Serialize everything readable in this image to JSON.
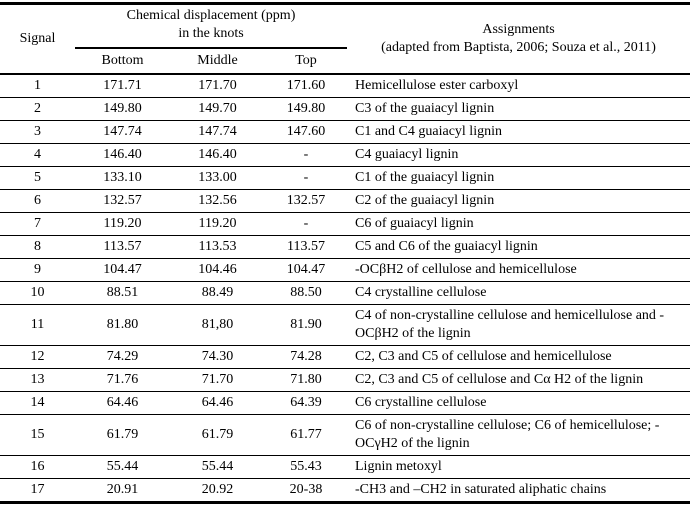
{
  "colors": {
    "text": "#000000",
    "background": "#ffffff",
    "rule": "#000000"
  },
  "header": {
    "signal": "Signal",
    "group_line1": "Chemical displacement (ppm)",
    "group_line2": "in the knots",
    "col_bottom": "Bottom",
    "col_middle": "Middle",
    "col_top": "Top",
    "assignments_line1": "Assignments",
    "assignments_line2": "(adapted from Baptista, 2006; Souza et al., 2011)"
  },
  "rows": [
    {
      "signal": "1",
      "bottom": "171.71",
      "middle": "171.70",
      "top": "171.60",
      "assignment": "Hemicellulose ester carboxyl"
    },
    {
      "signal": "2",
      "bottom": "149.80",
      "middle": "149.70",
      "top": "149.80",
      "assignment": "C3 of the guaiacyl lignin"
    },
    {
      "signal": "3",
      "bottom": "147.74",
      "middle": "147.74",
      "top": "147.60",
      "assignment": "C1 and C4 guaiacyl lignin"
    },
    {
      "signal": "4",
      "bottom": "146.40",
      "middle": "146.40",
      "top": "-",
      "assignment": "C4 guaiacyl lignin"
    },
    {
      "signal": "5",
      "bottom": "133.10",
      "middle": "133.00",
      "top": "-",
      "assignment": "C1 of the guaiacyl lignin"
    },
    {
      "signal": "6",
      "bottom": "132.57",
      "middle": "132.56",
      "top": "132.57",
      "assignment": "C2 of the guaiacyl lignin"
    },
    {
      "signal": "7",
      "bottom": "119.20",
      "middle": "119.20",
      "top": "-",
      "assignment": "C6 of guaiacyl lignin"
    },
    {
      "signal": "8",
      "bottom": "113.57",
      "middle": "113.53",
      "top": "113.57",
      "assignment": "C5 and C6 of the guaiacyl lignin"
    },
    {
      "signal": "9",
      "bottom": "104.47",
      "middle": "104.46",
      "top": "104.47",
      "assignment": "-OCβH2 of cellulose and hemicellulose"
    },
    {
      "signal": "10",
      "bottom": "88.51",
      "middle": "88.49",
      "top": "88.50",
      "assignment": "C4 crystalline cellulose"
    },
    {
      "signal": "11",
      "bottom": "81.80",
      "middle": "81,80",
      "top": "81.90",
      "assignment": "C4 of non-crystalline cellulose and hemicellulose and -OCβH2 of the lignin"
    },
    {
      "signal": "12",
      "bottom": "74.29",
      "middle": "74.30",
      "top": "74.28",
      "assignment": "C2, C3 and C5 of cellulose and hemicellulose"
    },
    {
      "signal": "13",
      "bottom": "71.76",
      "middle": "71.70",
      "top": "71.80",
      "assignment": "C2, C3 and C5 of cellulose and Cα H2 of the lignin"
    },
    {
      "signal": "14",
      "bottom": "64.46",
      "middle": "64.46",
      "top": "64.39",
      "assignment": "C6 crystalline cellulose"
    },
    {
      "signal": "15",
      "bottom": "61.79",
      "middle": "61.79",
      "top": "61.77",
      "assignment": "C6 of non-crystalline cellulose; C6 of hemicellulose; -OCγH2 of the lignin"
    },
    {
      "signal": "16",
      "bottom": "55.44",
      "middle": "55.44",
      "top": "55.43",
      "assignment": "Lignin metoxyl"
    },
    {
      "signal": "17",
      "bottom": "20.91",
      "middle": "20.92",
      "top": "20-38",
      "assignment": "-CH3 and –CH2 in saturated aliphatic chains"
    }
  ]
}
